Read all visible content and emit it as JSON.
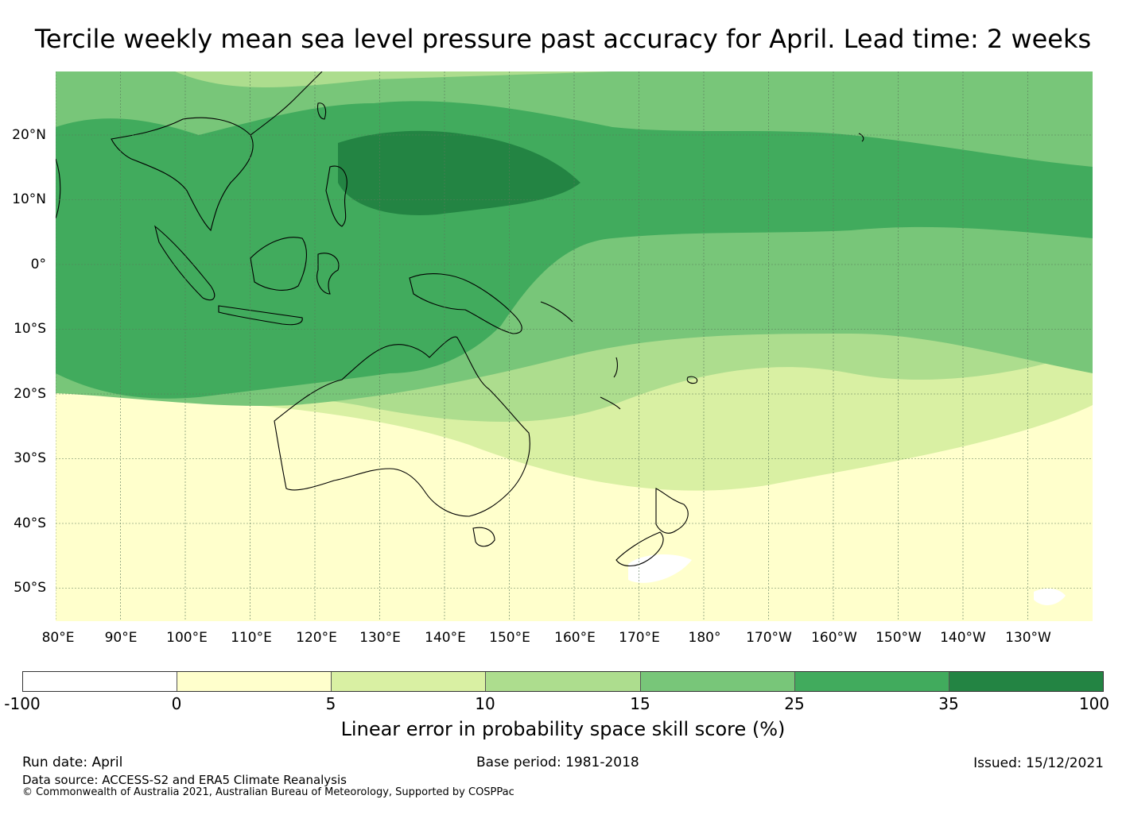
{
  "title": "Tercile weekly mean sea level pressure past accuracy for April. Lead time: 2 weeks",
  "lat_labels": [
    "20°N",
    "10°N",
    "0°",
    "10°S",
    "20°S",
    "30°S",
    "40°S",
    "50°S"
  ],
  "lon_labels": [
    "80°E",
    "90°E",
    "100°E",
    "110°E",
    "120°E",
    "130°E",
    "140°E",
    "150°E",
    "160°E",
    "170°E",
    "180°",
    "170°W",
    "160°W",
    "150°W",
    "140°W",
    "130°W"
  ],
  "colorbar": {
    "ticks": [
      "-100",
      "0",
      "5",
      "10",
      "15",
      "25",
      "35",
      "100"
    ],
    "colors": [
      "#ffffff",
      "#ffffcc",
      "#d9f0a3",
      "#addd8e",
      "#78c679",
      "#41ab5d",
      "#238443"
    ],
    "label": "Linear error in probability space skill score (%)"
  },
  "footer": {
    "run_date": "Run date: April",
    "base_period": "Base period: 1981-2018",
    "issued": "Issued: 15/12/2021",
    "data_source": "Data source: ACCESS-S2 and ERA5 Climate Reanalysis",
    "copyright": "© Commonwealth of Australia 2021, Australian Bureau of Meteorology, Supported by COSPPac"
  }
}
